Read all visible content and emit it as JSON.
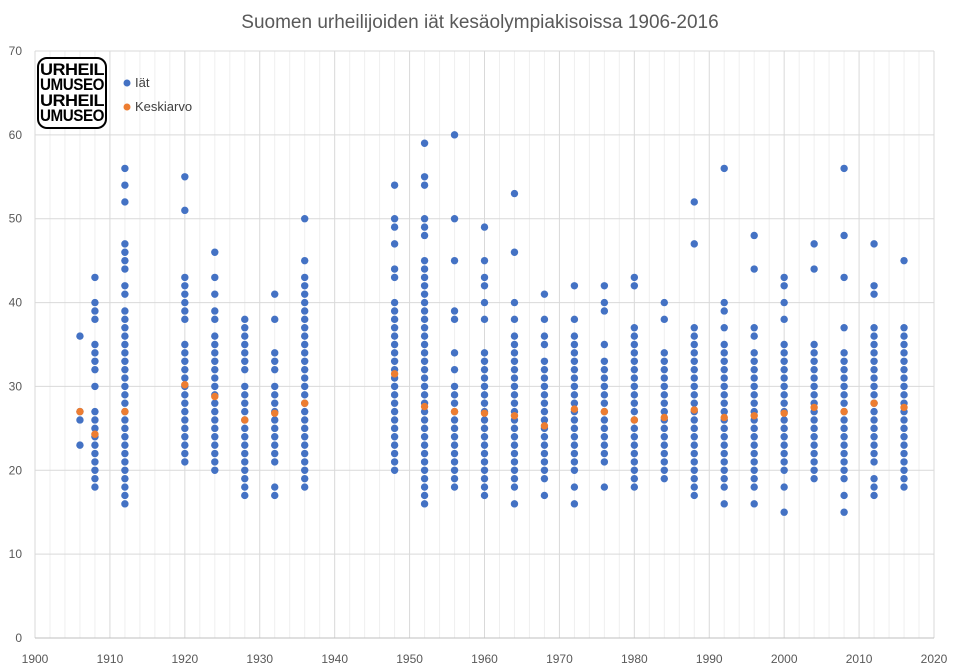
{
  "title": "Suomen urheilijoiden iät kesäolympiakisoissa 1906-2016",
  "logo": {
    "lines": [
      "URHEIL",
      "UMUSEO",
      "URHEIL",
      "UMUSEO"
    ]
  },
  "chart_data": {
    "type": "scatter",
    "title": "Suomen urheilijoiden iät kesäolympiakisoissa 1906-2016",
    "xlim": [
      1900,
      2020
    ],
    "ylim": [
      0,
      70
    ],
    "x_ticks": [
      1900,
      1910,
      1920,
      1930,
      1940,
      1950,
      1960,
      1970,
      1980,
      1990,
      2000,
      2010,
      2020
    ],
    "y_ticks": [
      0,
      10,
      20,
      30,
      40,
      50,
      60,
      70
    ],
    "grid": true,
    "legend_position": "top-left",
    "colors": {
      "ages": "#4472C4",
      "mean": "#ED7D31"
    },
    "series": [
      {
        "name": "Iät",
        "color": "#4472C4",
        "groups": [
          {
            "x": 1906,
            "y": [
              23,
              26,
              27,
              36
            ]
          },
          {
            "x": 1908,
            "y": [
              18,
              19,
              20,
              21,
              22,
              23,
              24,
              25,
              26,
              27,
              30,
              32,
              33,
              34,
              35,
              38,
              39,
              40,
              43
            ]
          },
          {
            "x": 1912,
            "y": [
              16,
              17,
              18,
              19,
              20,
              21,
              22,
              23,
              24,
              25,
              26,
              27,
              28,
              29,
              30,
              31,
              32,
              33,
              34,
              35,
              36,
              37,
              38,
              39,
              41,
              42,
              44,
              45,
              46,
              47,
              52,
              54,
              56
            ]
          },
          {
            "x": 1920,
            "y": [
              21,
              22,
              23,
              24,
              25,
              26,
              27,
              28,
              29,
              30,
              31,
              32,
              33,
              34,
              35,
              38,
              39,
              40,
              41,
              42,
              43,
              51,
              55
            ]
          },
          {
            "x": 1924,
            "y": [
              20,
              21,
              22,
              23,
              24,
              25,
              26,
              27,
              28,
              29,
              30,
              31,
              32,
              33,
              34,
              35,
              36,
              38,
              39,
              41,
              43,
              46
            ]
          },
          {
            "x": 1928,
            "y": [
              17,
              18,
              19,
              20,
              21,
              22,
              23,
              24,
              25,
              26,
              27,
              28,
              29,
              30,
              32,
              33,
              34,
              35,
              36,
              37,
              38
            ]
          },
          {
            "x": 1932,
            "y": [
              17,
              18,
              21,
              22,
              23,
              24,
              25,
              26,
              27,
              28,
              29,
              30,
              32,
              33,
              34,
              38,
              41
            ]
          },
          {
            "x": 1936,
            "y": [
              18,
              19,
              20,
              21,
              22,
              23,
              24,
              25,
              26,
              27,
              28,
              29,
              30,
              31,
              32,
              33,
              34,
              35,
              36,
              37,
              38,
              39,
              40,
              41,
              42,
              43,
              45,
              50
            ]
          },
          {
            "x": 1948,
            "y": [
              20,
              21,
              22,
              23,
              24,
              25,
              26,
              27,
              28,
              29,
              30,
              31,
              32,
              33,
              34,
              35,
              36,
              37,
              38,
              39,
              40,
              43,
              44,
              47,
              49,
              50,
              54
            ]
          },
          {
            "x": 1952,
            "y": [
              16,
              17,
              18,
              19,
              20,
              21,
              22,
              23,
              24,
              25,
              26,
              27,
              28,
              29,
              30,
              31,
              32,
              33,
              34,
              35,
              36,
              37,
              38,
              39,
              40,
              41,
              42,
              43,
              44,
              45,
              48,
              49,
              50,
              54,
              55,
              59
            ]
          },
          {
            "x": 1956,
            "y": [
              18,
              19,
              20,
              21,
              22,
              23,
              24,
              25,
              26,
              27,
              28,
              29,
              30,
              32,
              34,
              38,
              39,
              45,
              50,
              60
            ]
          },
          {
            "x": 1960,
            "y": [
              17,
              18,
              19,
              20,
              21,
              22,
              23,
              24,
              25,
              26,
              27,
              28,
              29,
              30,
              31,
              32,
              33,
              34,
              38,
              40,
              42,
              43,
              45,
              49
            ]
          },
          {
            "x": 1964,
            "y": [
              16,
              18,
              19,
              20,
              21,
              22,
              23,
              24,
              25,
              26,
              27,
              28,
              29,
              30,
              31,
              32,
              33,
              34,
              35,
              36,
              38,
              40,
              46,
              53
            ]
          },
          {
            "x": 1968,
            "y": [
              17,
              19,
              20,
              21,
              22,
              23,
              24,
              25,
              26,
              27,
              28,
              29,
              30,
              31,
              32,
              33,
              35,
              36,
              38,
              41
            ]
          },
          {
            "x": 1972,
            "y": [
              16,
              18,
              20,
              21,
              22,
              23,
              24,
              25,
              26,
              27,
              28,
              29,
              30,
              31,
              32,
              33,
              34,
              35,
              36,
              38,
              42
            ]
          },
          {
            "x": 1976,
            "y": [
              18,
              21,
              22,
              23,
              24,
              25,
              26,
              27,
              28,
              29,
              30,
              31,
              32,
              33,
              35,
              39,
              40,
              42
            ]
          },
          {
            "x": 1980,
            "y": [
              18,
              19,
              20,
              21,
              22,
              23,
              24,
              25,
              26,
              27,
              28,
              29,
              30,
              31,
              32,
              33,
              34,
              35,
              36,
              37,
              42,
              43
            ]
          },
          {
            "x": 1984,
            "y": [
              19,
              20,
              21,
              22,
              23,
              24,
              25,
              26,
              27,
              28,
              29,
              30,
              31,
              32,
              33,
              34,
              38,
              40
            ]
          },
          {
            "x": 1988,
            "y": [
              17,
              18,
              19,
              20,
              21,
              22,
              23,
              24,
              25,
              26,
              27,
              28,
              29,
              30,
              31,
              32,
              33,
              34,
              35,
              36,
              37,
              47,
              52
            ]
          },
          {
            "x": 1992,
            "y": [
              16,
              18,
              19,
              20,
              21,
              22,
              23,
              24,
              25,
              26,
              27,
              28,
              29,
              30,
              31,
              32,
              33,
              34,
              35,
              37,
              39,
              40,
              56
            ]
          },
          {
            "x": 1996,
            "y": [
              16,
              18,
              19,
              20,
              21,
              22,
              23,
              24,
              25,
              26,
              27,
              28,
              29,
              30,
              31,
              32,
              33,
              34,
              36,
              37,
              44,
              48
            ]
          },
          {
            "x": 2000,
            "y": [
              15,
              18,
              20,
              21,
              22,
              23,
              24,
              25,
              26,
              27,
              28,
              29,
              30,
              31,
              32,
              33,
              34,
              35,
              38,
              40,
              42,
              43
            ]
          },
          {
            "x": 2004,
            "y": [
              19,
              20,
              21,
              22,
              23,
              24,
              25,
              26,
              27,
              28,
              29,
              30,
              31,
              32,
              33,
              34,
              35,
              44,
              47
            ]
          },
          {
            "x": 2008,
            "y": [
              15,
              17,
              19,
              20,
              21,
              22,
              23,
              24,
              25,
              26,
              27,
              28,
              29,
              30,
              31,
              32,
              33,
              34,
              37,
              43,
              48,
              56
            ]
          },
          {
            "x": 2012,
            "y": [
              17,
              18,
              19,
              21,
              22,
              23,
              24,
              25,
              26,
              27,
              28,
              29,
              30,
              31,
              32,
              33,
              34,
              35,
              36,
              37,
              41,
              42,
              47
            ]
          },
          {
            "x": 2016,
            "y": [
              18,
              19,
              20,
              21,
              22,
              23,
              24,
              25,
              26,
              27,
              28,
              29,
              30,
              31,
              32,
              33,
              34,
              35,
              36,
              37,
              45
            ]
          }
        ]
      },
      {
        "name": "Keskiarvo",
        "color": "#ED7D31",
        "points": [
          {
            "x": 1906,
            "y": 27.0
          },
          {
            "x": 1908,
            "y": 24.3
          },
          {
            "x": 1912,
            "y": 27.0
          },
          {
            "x": 1920,
            "y": 30.2
          },
          {
            "x": 1924,
            "y": 28.8
          },
          {
            "x": 1928,
            "y": 26.0
          },
          {
            "x": 1932,
            "y": 26.8
          },
          {
            "x": 1936,
            "y": 28.0
          },
          {
            "x": 1948,
            "y": 31.5
          },
          {
            "x": 1952,
            "y": 27.6
          },
          {
            "x": 1956,
            "y": 27.0
          },
          {
            "x": 1960,
            "y": 26.8
          },
          {
            "x": 1964,
            "y": 26.5
          },
          {
            "x": 1968,
            "y": 25.3
          },
          {
            "x": 1972,
            "y": 27.3
          },
          {
            "x": 1976,
            "y": 27.0
          },
          {
            "x": 1980,
            "y": 26.0
          },
          {
            "x": 1984,
            "y": 26.3
          },
          {
            "x": 1988,
            "y": 27.2
          },
          {
            "x": 1992,
            "y": 26.3
          },
          {
            "x": 1996,
            "y": 26.5
          },
          {
            "x": 2000,
            "y": 26.8
          },
          {
            "x": 2004,
            "y": 27.5
          },
          {
            "x": 2008,
            "y": 27.0
          },
          {
            "x": 2012,
            "y": 28.0
          },
          {
            "x": 2016,
            "y": 27.5
          }
        ]
      }
    ]
  }
}
